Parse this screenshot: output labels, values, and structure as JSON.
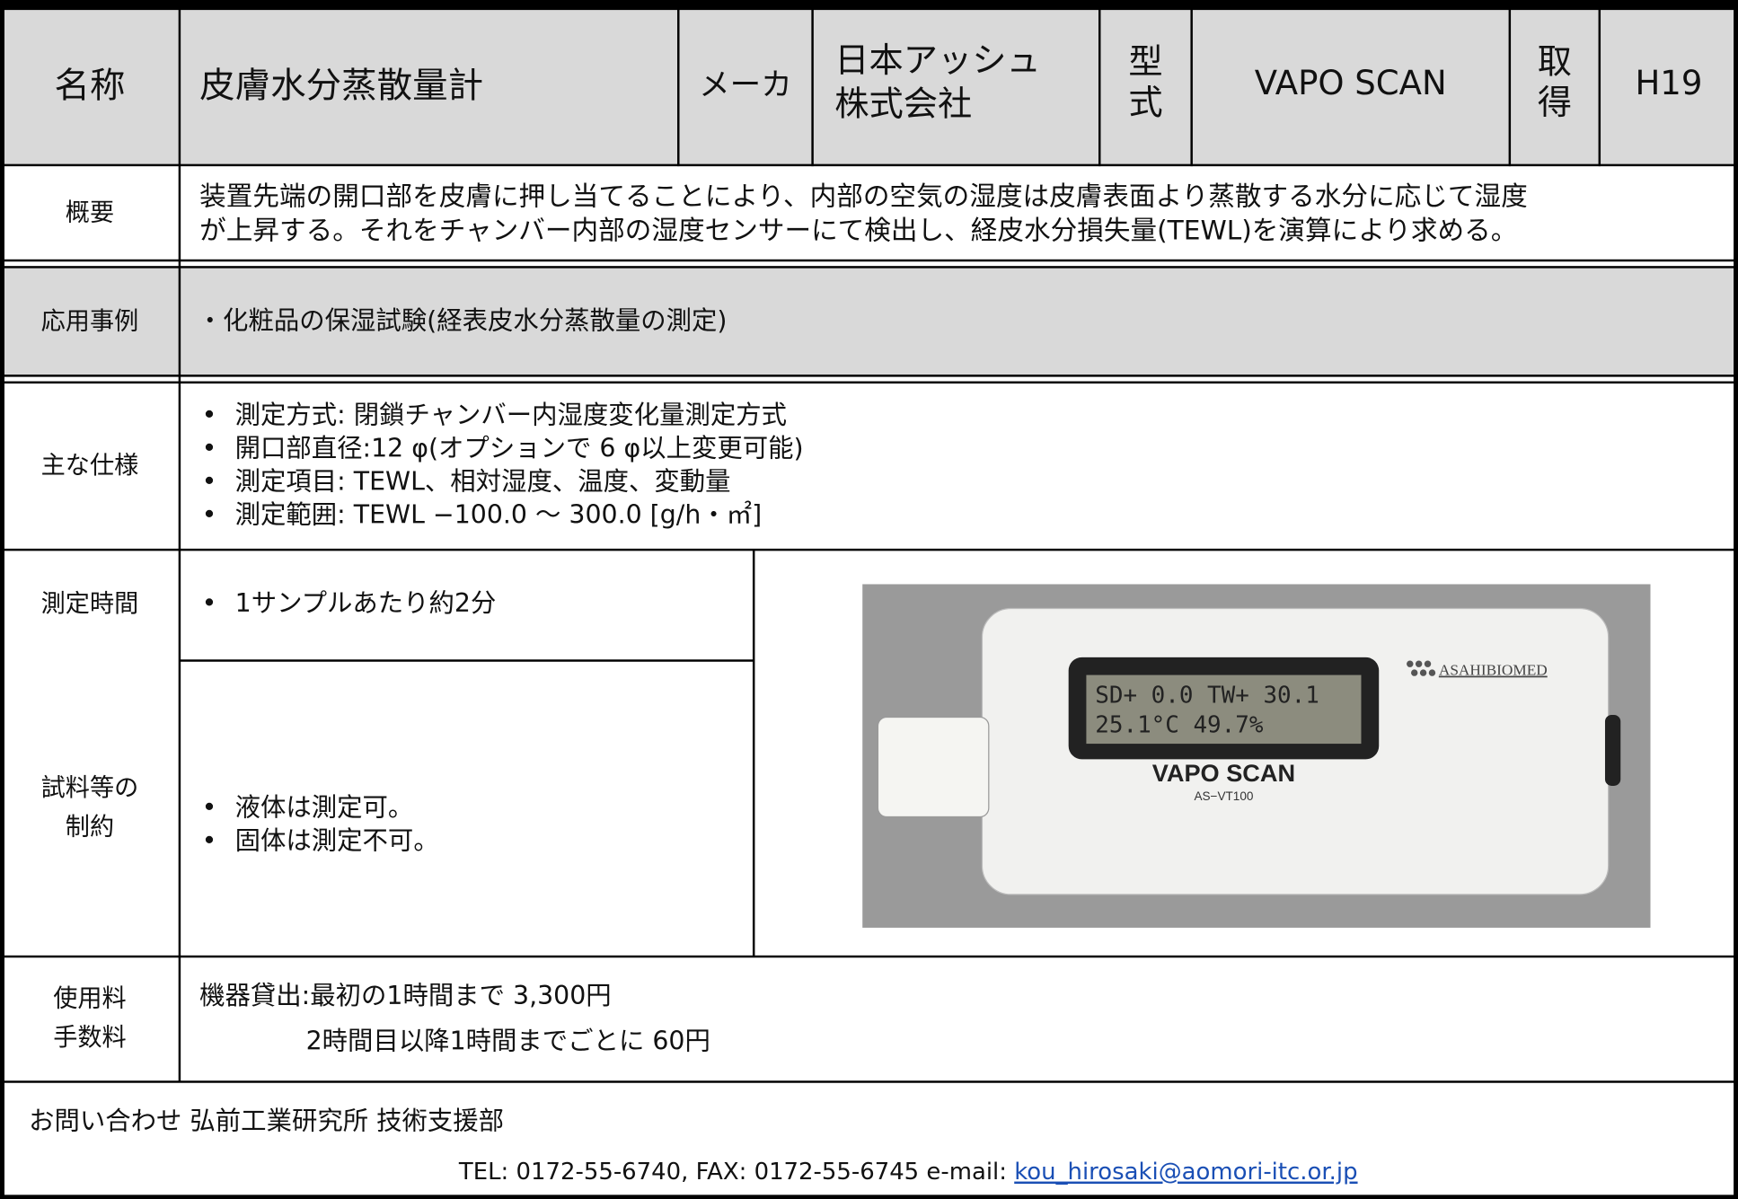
{
  "header": {
    "name_label": "名称",
    "name": "皮膚水分蒸散量計",
    "maker_label": "メーカ",
    "maker": [
      "日本アッシュ",
      "株式会社"
    ],
    "model_label": [
      "型",
      "式"
    ],
    "model": "VAPO SCAN",
    "acquired_label": [
      "取",
      "得"
    ],
    "acquired": "H19"
  },
  "overview": {
    "label": "概要",
    "lines": [
      "装置先端の開口部を皮膚に押し当てることにより、内部の空気の湿度は皮膚表面より蒸散する水分に応じて湿度",
      "が上昇する。それをチャンバー内部の湿度センサーにて検出し、経皮水分損失量(TEWL)を演算により求める。"
    ]
  },
  "application": {
    "label": "応用事例",
    "text": "・化粧品の保湿試験(経表皮水分蒸散量の測定)"
  },
  "specs": {
    "label": "主な仕様",
    "items": [
      "測定方式: 閉鎖チャンバー内湿度変化量測定方式",
      "開口部直径:12 φ(オプションで 6 φ以上変更可能)",
      "測定項目: TEWL、相対湿度、温度、変動量",
      "測定範囲: TEWL −100.0 ～ 300.0 [g/h・㎡]"
    ]
  },
  "measure_time": {
    "label": "測定時間",
    "items": [
      "1サンプルあたり約2分"
    ]
  },
  "sample": {
    "label": [
      "試料等の",
      "制約"
    ],
    "items": [
      "液体は測定可。",
      "固体は測定不可。"
    ]
  },
  "photo": {
    "lcd": [
      "SD+ 0.0 TW+ 30.1",
      "25.1°C 49.7%"
    ],
    "brand": "ASAHIBIOMED",
    "product": "VAPO SCAN",
    "model": "AS−VT100"
  },
  "fee": {
    "label": [
      "使用料",
      "手数料"
    ],
    "lines": [
      "機器貸出:最初の1時間まで 3,300円",
      "2時間目以降1時間までごとに 60円"
    ]
  },
  "contact": {
    "line1": "お問い合わせ 弘前工業研究所 技術支援部",
    "line2": "TEL: 0172-55-6740, FAX: 0172-55-6745 e-mail:",
    "email": "kou_hirosaki@aomori-itc.or.jp"
  }
}
